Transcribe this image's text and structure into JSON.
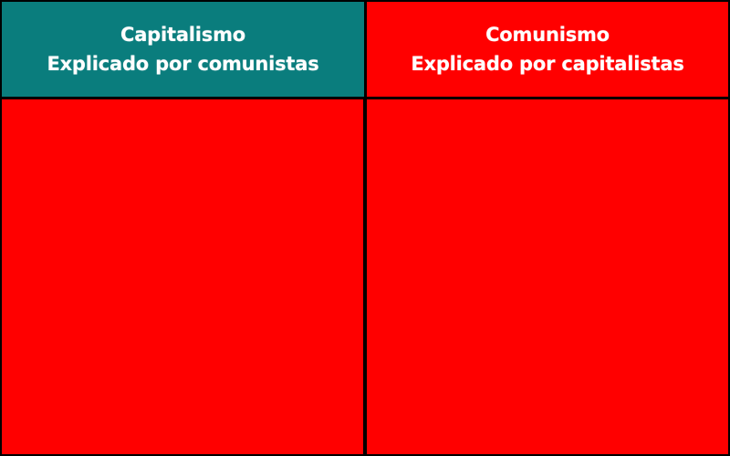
{
  "colors": {
    "teal": "#0a7d7d",
    "red": "#ff0000",
    "border": "#000000",
    "text": "#ffffff"
  },
  "left": {
    "title": "Capitalismo",
    "subtitle": "Explicado por comunistas"
  },
  "right": {
    "title": "Comunismo",
    "subtitle": "Explicado por capitalistas"
  }
}
